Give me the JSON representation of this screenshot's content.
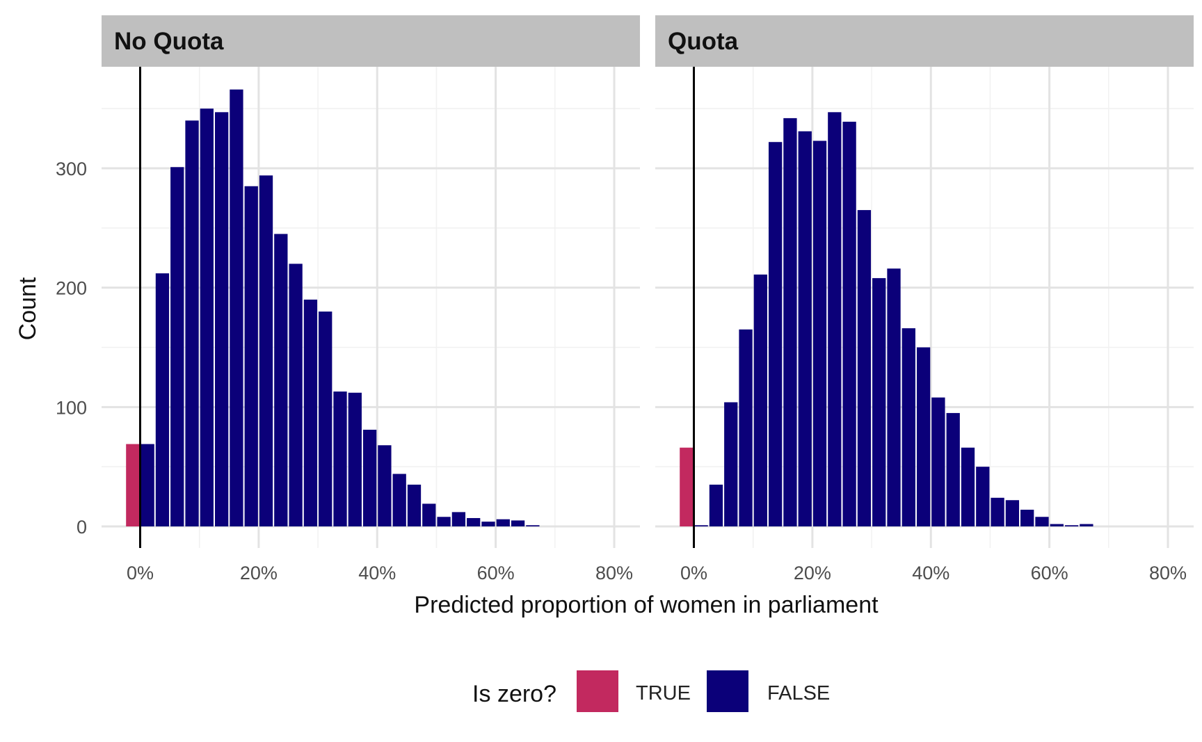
{
  "chart_data": {
    "type": "bar",
    "xlabel": "Predicted proportion of women in parliament",
    "ylabel": "Count",
    "x_ticks": [
      "0%",
      "20%",
      "40%",
      "60%",
      "80%"
    ],
    "x_tick_values": [
      0,
      0.2,
      0.4,
      0.6,
      0.8
    ],
    "y_ticks": [
      "0",
      "100",
      "200",
      "300"
    ],
    "y_tick_values": [
      0,
      100,
      200,
      300
    ],
    "xlim": [
      -0.065,
      0.81
    ],
    "ylim": [
      -17,
      385
    ],
    "bin_width": 0.025,
    "reference_line_x": 0,
    "grid": true,
    "legend": {
      "title": "Is zero?",
      "position": "bottom",
      "entries": [
        {
          "label": "TRUE",
          "color": "#C2295F"
        },
        {
          "label": "FALSE",
          "color": "#0B0079"
        }
      ]
    },
    "panels": [
      {
        "name": "No Quota",
        "series": [
          {
            "name": "TRUE",
            "color": "#C2295F",
            "x": [
              -0.0125
            ],
            "values": [
              69
            ]
          },
          {
            "name": "FALSE",
            "color": "#0B0079",
            "x": [
              0.0125,
              0.0375,
              0.0625,
              0.0875,
              0.1125,
              0.1375,
              0.1625,
              0.1875,
              0.2125,
              0.2375,
              0.2625,
              0.2875,
              0.3125,
              0.3375,
              0.3625,
              0.3875,
              0.4125,
              0.4375,
              0.4625,
              0.4875,
              0.5125,
              0.5375,
              0.5625,
              0.5875,
              0.6125,
              0.6375,
              0.6625
            ],
            "values": [
              69,
              212,
              301,
              340,
              350,
              347,
              366,
              285,
              294,
              245,
              220,
              190,
              180,
              113,
              112,
              81,
              68,
              44,
              35,
              19,
              8,
              12,
              7,
              4,
              6,
              5,
              1
            ]
          }
        ]
      },
      {
        "name": "Quota",
        "series": [
          {
            "name": "TRUE",
            "color": "#C2295F",
            "x": [
              -0.0125
            ],
            "values": [
              66
            ]
          },
          {
            "name": "FALSE",
            "color": "#0B0079",
            "x": [
              0.0125,
              0.0375,
              0.0625,
              0.0875,
              0.1125,
              0.1375,
              0.1625,
              0.1875,
              0.2125,
              0.2375,
              0.2625,
              0.2875,
              0.3125,
              0.3375,
              0.3625,
              0.3875,
              0.4125,
              0.4375,
              0.4625,
              0.4875,
              0.5125,
              0.5375,
              0.5625,
              0.5875,
              0.6125,
              0.6375,
              0.6625
            ],
            "values": [
              1,
              35,
              104,
              165,
              211,
              322,
              342,
              331,
              323,
              347,
              339,
              265,
              208,
              216,
              166,
              150,
              108,
              95,
              66,
              50,
              24,
              22,
              14,
              8,
              2,
              1,
              2
            ]
          }
        ]
      }
    ]
  }
}
